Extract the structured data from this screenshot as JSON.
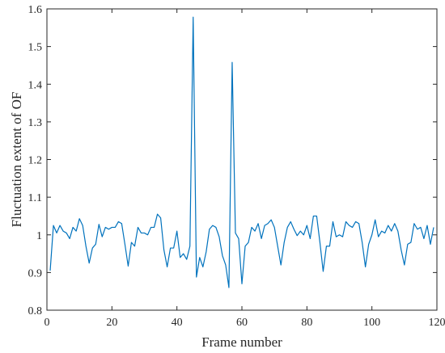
{
  "chart_data": {
    "type": "line",
    "title": "",
    "xlabel": "Frame number",
    "ylabel": "Fluctuation extent of OF",
    "xlim": [
      0,
      120
    ],
    "ylim": [
      0.8,
      1.6
    ],
    "xticks": [
      0,
      20,
      40,
      60,
      80,
      100,
      120
    ],
    "yticks": [
      0.8,
      0.9,
      1.0,
      1.1,
      1.2,
      1.3,
      1.4,
      1.5,
      1.6
    ],
    "xtick_labels": [
      "0",
      "20",
      "40",
      "60",
      "80",
      "100",
      "120"
    ],
    "ytick_labels": [
      "0.8",
      "0.9",
      "1",
      "1.1",
      "1.2",
      "1.3",
      "1.4",
      "1.5",
      "1.6"
    ],
    "grid": false,
    "box": true,
    "series": [
      {
        "color": "#0072BD",
        "x": [
          1,
          2,
          3,
          4,
          5,
          6,
          7,
          8,
          9,
          10,
          11,
          12,
          13,
          14,
          15,
          16,
          17,
          18,
          19,
          20,
          21,
          22,
          23,
          24,
          25,
          26,
          27,
          28,
          29,
          30,
          31,
          32,
          33,
          34,
          35,
          36,
          37,
          38,
          39,
          40,
          41,
          42,
          43,
          44,
          45,
          46,
          47,
          48,
          49,
          50,
          51,
          52,
          53,
          54,
          55,
          56,
          57,
          58,
          59,
          60,
          61,
          62,
          63,
          64,
          65,
          66,
          67,
          68,
          69,
          70,
          71,
          72,
          73,
          74,
          75,
          76,
          77,
          78,
          79,
          80,
          81,
          82,
          83,
          84,
          85,
          86,
          87,
          88,
          89,
          90,
          91,
          92,
          93,
          94,
          95,
          96,
          97,
          98,
          99,
          100,
          101,
          102,
          103,
          104,
          105,
          106,
          107,
          108,
          109,
          110,
          111,
          112,
          113,
          114,
          115,
          116,
          117,
          118,
          119
        ],
        "y": [
          0.905,
          1.025,
          1.005,
          1.025,
          1.01,
          1.005,
          0.99,
          1.02,
          1.01,
          1.043,
          1.025,
          0.97,
          0.925,
          0.965,
          0.975,
          1.028,
          0.995,
          1.02,
          1.015,
          1.02,
          1.02,
          1.035,
          1.03,
          0.975,
          0.917,
          0.98,
          0.97,
          1.02,
          1.005,
          1.005,
          1.0,
          1.02,
          1.02,
          1.055,
          1.045,
          0.96,
          0.915,
          0.965,
          0.965,
          1.01,
          0.94,
          0.95,
          0.935,
          0.97,
          1.578,
          0.888,
          0.94,
          0.915,
          0.955,
          1.015,
          1.025,
          1.02,
          0.995,
          0.945,
          0.92,
          0.86,
          1.458,
          1.005,
          0.99,
          0.87,
          0.97,
          0.98,
          1.02,
          1.01,
          1.03,
          0.99,
          1.025,
          1.03,
          1.04,
          1.02,
          0.97,
          0.92,
          0.98,
          1.02,
          1.035,
          1.015,
          0.998,
          1.01,
          1.0,
          1.025,
          0.99,
          1.05,
          1.05,
          0.98,
          0.903,
          0.97,
          0.97,
          1.035,
          0.995,
          1.0,
          0.995,
          1.035,
          1.025,
          1.02,
          1.035,
          1.03,
          0.98,
          0.915,
          0.975,
          1.0,
          1.04,
          0.995,
          1.01,
          1.005,
          1.025,
          1.01,
          1.03,
          1.01,
          0.96,
          0.92,
          0.975,
          0.98,
          1.03,
          1.015,
          1.02,
          0.99,
          1.025,
          0.975,
          1.02
        ]
      }
    ]
  }
}
